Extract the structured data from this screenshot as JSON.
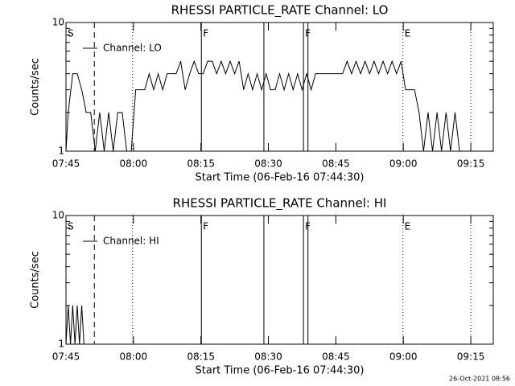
{
  "chart_data": [
    {
      "type": "line",
      "title": "RHESSI PARTICLE_RATE Channel: LO",
      "xlabel": "Start Time (06-Feb-16 07:44:30)",
      "ylabel": "Counts/sec",
      "log_y": true,
      "ylim": [
        1,
        10
      ],
      "yticks": [
        1,
        10
      ],
      "yminorticks": [
        2,
        3,
        4,
        5,
        6,
        7,
        8,
        9
      ],
      "xlim": [
        0.5,
        95.5
      ],
      "xticks": [
        {
          "value": 0.5,
          "label": "07:45"
        },
        {
          "value": 15.5,
          "label": "08:00"
        },
        {
          "value": 30.5,
          "label": "08:15"
        },
        {
          "value": 45.5,
          "label": "08:30"
        },
        {
          "value": 60.5,
          "label": "08:45"
        },
        {
          "value": 75.5,
          "label": "09:00"
        },
        {
          "value": 90.5,
          "label": "09:15"
        }
      ],
      "legend": "upper left",
      "events": [
        {
          "x": 0.5,
          "style": "dashed",
          "label": "S"
        },
        {
          "x": 6.8,
          "style": "dashed"
        },
        {
          "x": 15.3,
          "style": "dotted"
        },
        {
          "x": 30.6,
          "style": "solid",
          "label": "F"
        },
        {
          "x": 44.5,
          "style": "solid"
        },
        {
          "x": 53.3,
          "style": "solid",
          "label": "F"
        },
        {
          "x": 54.3,
          "style": "solid"
        },
        {
          "x": 75.4,
          "style": "dotted",
          "label": "E"
        },
        {
          "x": 90.5,
          "style": "dotted"
        }
      ],
      "x": [
        0.5,
        1,
        2,
        3,
        4,
        5,
        6,
        7,
        8,
        9,
        10,
        11,
        12,
        13,
        14,
        15,
        16,
        17,
        18,
        19,
        20,
        21,
        22,
        23,
        24,
        25,
        26,
        27,
        28,
        29,
        30,
        31,
        32,
        33,
        34,
        35,
        36,
        37,
        38,
        39,
        40,
        41,
        42,
        43,
        44,
        45,
        46,
        47,
        48,
        49,
        50,
        51,
        52,
        53,
        54,
        55,
        56,
        57,
        58,
        59,
        60,
        61,
        62,
        63,
        64,
        65,
        66,
        67,
        68,
        69,
        70,
        71,
        72,
        73,
        74,
        75,
        76,
        77,
        78,
        79,
        80,
        81,
        82,
        83,
        84,
        85,
        86,
        87,
        88
      ],
      "series": [
        {
          "name": "Channel: LO",
          "color": "#000000",
          "values": [
            1,
            2,
            4,
            4,
            3,
            2,
            2,
            1,
            2,
            1,
            2,
            1,
            2,
            2,
            1,
            1,
            3,
            3,
            3,
            4,
            3,
            4,
            3,
            4,
            4,
            4,
            5,
            3,
            4,
            5,
            4,
            4,
            5,
            5,
            4,
            5,
            4,
            5,
            4,
            5,
            3,
            4,
            3,
            4,
            3,
            4,
            3,
            3,
            4,
            3,
            4,
            3,
            4,
            3,
            4,
            3,
            4,
            4,
            4,
            4,
            4,
            4,
            4,
            5,
            4,
            5,
            4,
            5,
            4,
            5,
            4,
            5,
            4,
            5,
            4,
            5,
            3,
            3,
            3,
            2,
            1,
            2,
            1,
            2,
            1,
            2,
            1,
            2,
            1
          ]
        }
      ]
    },
    {
      "type": "line",
      "title": "RHESSI PARTICLE_RATE Channel: HI",
      "xlabel": "Start Time (06-Feb-16 07:44:30)",
      "ylabel": "Counts/sec",
      "log_y": true,
      "ylim": [
        1,
        10
      ],
      "yticks": [
        1,
        10
      ],
      "yminorticks": [
        2,
        3,
        4,
        5,
        6,
        7,
        8,
        9
      ],
      "xlim": [
        0.5,
        95.5
      ],
      "xticks": [
        {
          "value": 0.5,
          "label": "07:45"
        },
        {
          "value": 15.5,
          "label": "08:00"
        },
        {
          "value": 30.5,
          "label": "08:15"
        },
        {
          "value": 45.5,
          "label": "08:30"
        },
        {
          "value": 60.5,
          "label": "08:45"
        },
        {
          "value": 75.5,
          "label": "09:00"
        },
        {
          "value": 90.5,
          "label": "09:15"
        }
      ],
      "legend": "upper left",
      "events": [
        {
          "x": 0.5,
          "style": "dashed",
          "label": "S"
        },
        {
          "x": 6.8,
          "style": "dashed"
        },
        {
          "x": 15.3,
          "style": "dotted"
        },
        {
          "x": 30.6,
          "style": "solid",
          "label": "F"
        },
        {
          "x": 44.5,
          "style": "solid"
        },
        {
          "x": 53.3,
          "style": "solid",
          "label": "F"
        },
        {
          "x": 54.3,
          "style": "solid"
        },
        {
          "x": 75.4,
          "style": "dotted",
          "label": "E"
        },
        {
          "x": 90.5,
          "style": "dotted"
        }
      ],
      "x": [
        0.5,
        1,
        1.5,
        2,
        2.5,
        3,
        3.5,
        4,
        4.5
      ],
      "series": [
        {
          "name": "Channel: HI",
          "color": "#000000",
          "values": [
            1,
            2,
            1,
            2,
            1,
            2,
            1,
            2,
            1
          ]
        }
      ]
    }
  ],
  "footer": "26-Oct-2021 08:56"
}
